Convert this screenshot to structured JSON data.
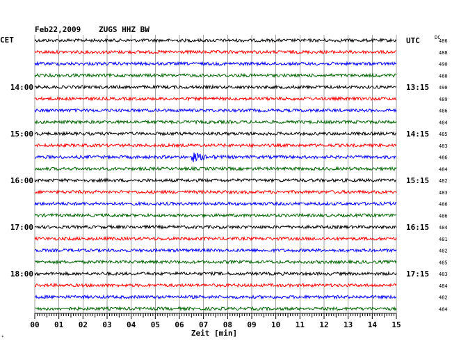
{
  "header": {
    "date": "Feb22,2009",
    "station": "ZUGS HHZ BW",
    "left_zone": "CET",
    "right_zone": "UTC",
    "dc_label": "DC"
  },
  "chart_data": {
    "type": "line",
    "title": "Feb22,2009   ZUGS HHZ BW",
    "xlabel": "Zeit [min]",
    "xlim": [
      0,
      15
    ],
    "x_ticks": [
      "00",
      "01",
      "02",
      "03",
      "04",
      "05",
      "06",
      "07",
      "08",
      "09",
      "10",
      "11",
      "12",
      "13",
      "14",
      "15"
    ],
    "grid": true,
    "trace_colors": [
      "#000000",
      "#ff0000",
      "#0000ff",
      "#006600"
    ],
    "left_hour_labels": [
      {
        "row": 4,
        "text": "14:00"
      },
      {
        "row": 8,
        "text": "15:00"
      },
      {
        "row": 12,
        "text": "16:00"
      },
      {
        "row": 16,
        "text": "17:00"
      },
      {
        "row": 20,
        "text": "18:00"
      }
    ],
    "right_hour_labels": [
      {
        "row": 0,
        "text": "UTC"
      },
      {
        "row": 4,
        "text": "13:15"
      },
      {
        "row": 8,
        "text": "14:15"
      },
      {
        "row": 12,
        "text": "15:15"
      },
      {
        "row": 16,
        "text": "16:15"
      },
      {
        "row": 20,
        "text": "17:15"
      }
    ],
    "dc_offsets": [
      "486",
      "488",
      "490",
      "488",
      "490",
      "489",
      "486",
      "484",
      "485",
      "483",
      "486",
      "484",
      "482",
      "483",
      "486",
      "486",
      "484",
      "481",
      "482",
      "485",
      "483",
      "484",
      "482",
      "484"
    ],
    "event": {
      "row": 10,
      "start_min": 6.5,
      "end_min": 8.0
    }
  }
}
